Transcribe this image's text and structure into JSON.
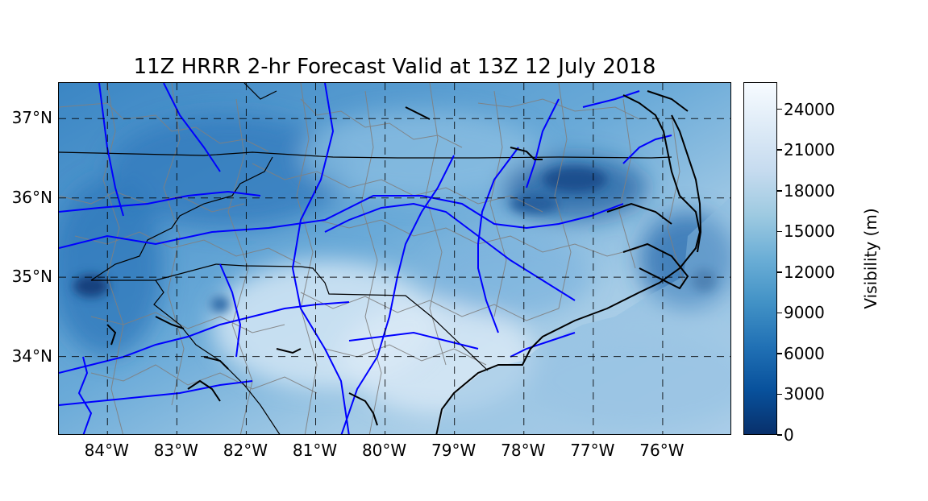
{
  "title": "11Z HRRR 2-hr Forecast Valid at 13Z 12 July 2018",
  "map": {
    "extent": {
      "lon_min": -84.7,
      "lon_max": -75.0,
      "lat_min": 33.0,
      "lat_max": 37.45
    },
    "lat_ticks": [
      {
        "value": 37,
        "label": "37°N"
      },
      {
        "value": 36,
        "label": "36°N"
      },
      {
        "value": 35,
        "label": "35°N"
      },
      {
        "value": 34,
        "label": "34°N"
      }
    ],
    "lon_ticks": [
      {
        "value": -84,
        "label": "84°W"
      },
      {
        "value": -83,
        "label": "83°W"
      },
      {
        "value": -82,
        "label": "82°W"
      },
      {
        "value": -81,
        "label": "81°W"
      },
      {
        "value": -80,
        "label": "80°W"
      },
      {
        "value": -79,
        "label": "79°W"
      },
      {
        "value": -78,
        "label": "78°W"
      },
      {
        "value": -77,
        "label": "77°W"
      },
      {
        "value": -76,
        "label": "76°W"
      }
    ],
    "gridlines": "dashed",
    "layers": [
      "visibility-field",
      "state-borders",
      "county-borders",
      "coastline",
      "interstate-highways"
    ],
    "colors": {
      "highways": "#0000ff",
      "counties": "#808080",
      "states": "#000000",
      "coastline": "#000000"
    }
  },
  "colorbar": {
    "label": "Visibility (m)",
    "min": 0,
    "max": 26000,
    "ticks": [
      {
        "value": 0,
        "label": "0"
      },
      {
        "value": 3000,
        "label": "3000"
      },
      {
        "value": 6000,
        "label": "6000"
      },
      {
        "value": 9000,
        "label": "9000"
      },
      {
        "value": 12000,
        "label": "12000"
      },
      {
        "value": 15000,
        "label": "15000"
      },
      {
        "value": 18000,
        "label": "18000"
      },
      {
        "value": 21000,
        "label": "21000"
      },
      {
        "value": 24000,
        "label": "24000"
      }
    ],
    "colormap": [
      "#08306b",
      "#08519c",
      "#2171b5",
      "#4292c6",
      "#6baed6",
      "#9ecae1",
      "#c6dbef",
      "#deebf7",
      "#f7fbff"
    ]
  }
}
